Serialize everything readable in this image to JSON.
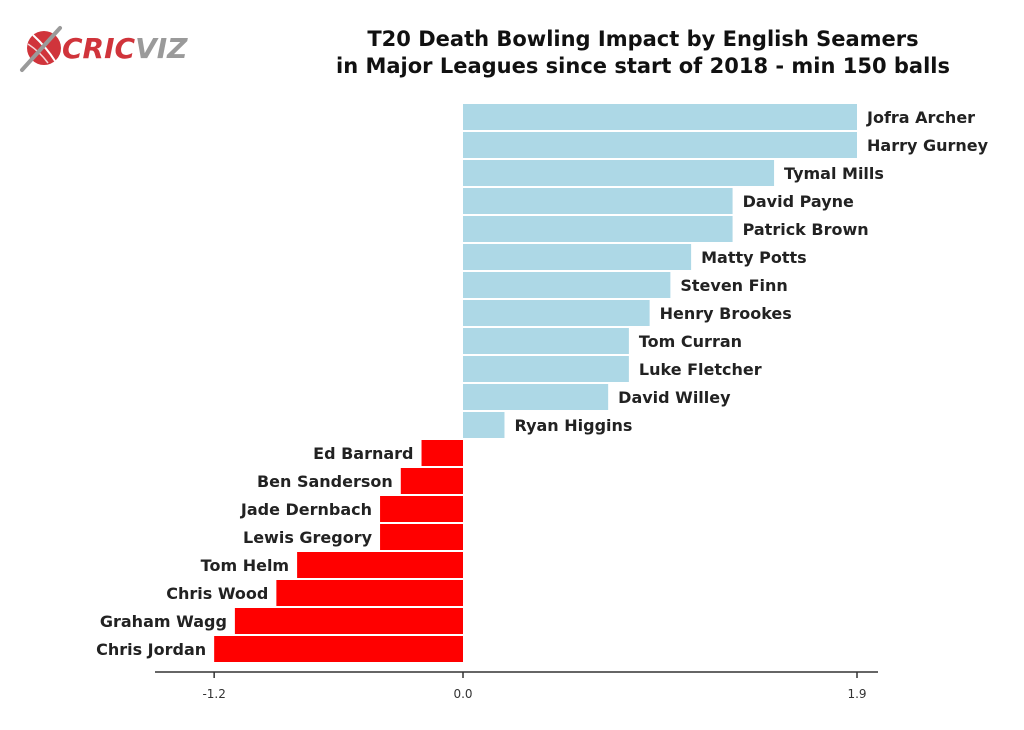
{
  "logo": {
    "text_a": "CRIC",
    "text_b": "VIZ",
    "color_a": "#d0343b",
    "color_b": "#9a9a9a"
  },
  "chart_data": {
    "type": "bar",
    "orientation": "horizontal",
    "title": "T20 Death Bowling Impact by English Seamers in Major Leagues since start of 2018 - min 150 balls",
    "title_lines": [
      "T20 Death Bowling Impact by English Seamers",
      "in Major Leagues since start of 2018 - min 150 balls"
    ],
    "xlabel": "",
    "ylabel": "",
    "xlim": [
      -1.5,
      2.0
    ],
    "ticks": [
      {
        "value": -1.2,
        "label": "-1.2"
      },
      {
        "value": 0.0,
        "label": "0.0"
      },
      {
        "value": 1.9,
        "label": "1.9"
      }
    ],
    "categories": [
      "Jofra Archer",
      "Harry Gurney",
      "Tymal Mills",
      "David Payne",
      "Patrick Brown",
      "Matty Potts",
      "Steven Finn",
      "Henry Brookes",
      "Tom Curran",
      "Luke Fletcher",
      "David Willey",
      "Ryan Higgins",
      "Ed Barnard",
      "Ben Sanderson",
      "Jade Dernbach",
      "Lewis Gregory",
      "Tom Helm",
      "Chris Wood",
      "Graham Wagg",
      "Chris Jordan"
    ],
    "values": [
      1.9,
      1.9,
      1.5,
      1.3,
      1.3,
      1.1,
      1.0,
      0.9,
      0.8,
      0.8,
      0.7,
      0.2,
      -0.2,
      -0.3,
      -0.4,
      -0.4,
      -0.8,
      -0.9,
      -1.1,
      -1.2
    ],
    "colors": {
      "positive": "#add8e6",
      "negative": "#ff0000"
    },
    "grid": false,
    "legend": "none"
  }
}
